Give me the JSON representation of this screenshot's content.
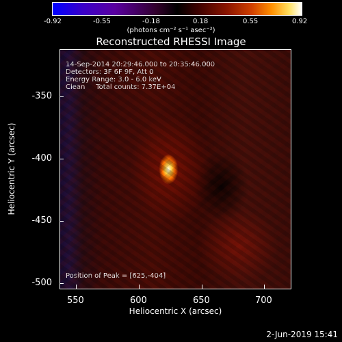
{
  "colorbar": {
    "ticks": [
      "-0.92",
      "-0.55",
      "-0.18",
      "0.18",
      "0.55",
      "0.92"
    ],
    "units": "(photons cm⁻² s⁻¹ asec⁻²)"
  },
  "title": "Reconstructed RHESSI Image",
  "info": {
    "time": "14-Sep-2014 20:29:46.000 to 20:35:46.000",
    "detectors": "Detectors: 3F 6F 9F, Att 0",
    "energy": "Energy Range: 3.0 - 6.0 keV",
    "method": "Clean     Total counts: 7.37E+04",
    "peak": "Position of Peak = [625,-404]"
  },
  "axes": {
    "xlabel": "Heliocentric X (arcsec)",
    "ylabel": "Heliocentric Y (arcsec)",
    "xticks": [
      "550",
      "600",
      "650",
      "700"
    ],
    "yticks": [
      "-350",
      "-400",
      "-450",
      "-500"
    ]
  },
  "footer": {
    "date": "2-Jun-2019 15:41"
  }
}
